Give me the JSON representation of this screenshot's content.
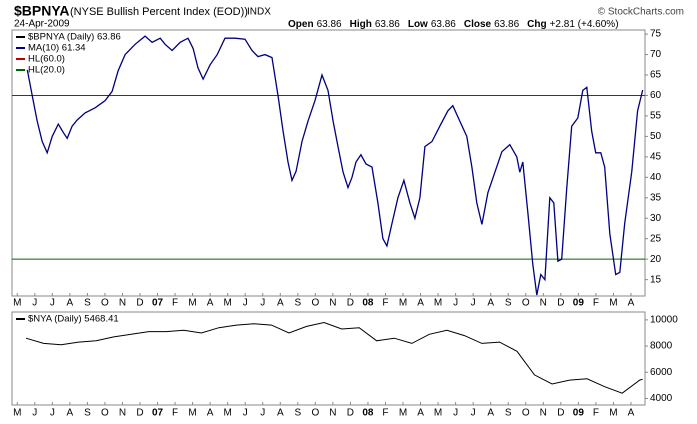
{
  "chart_data": [
    {
      "type": "line",
      "title": "$BPNYA",
      "subtitle": "(NYSE Bullish Percent Index (EOD))",
      "exchange": "INDX",
      "date": "24-Apr-2009",
      "quote": [
        {
          "label": "Open",
          "value": 63.86
        },
        {
          "label": "High",
          "value": 63.86
        },
        {
          "label": "Low",
          "value": 63.86
        },
        {
          "label": "Close",
          "value": 63.86
        },
        {
          "label": "Chg",
          "value": "+2.81 (+4.60%)"
        }
      ],
      "credit": "© StockCharts.com",
      "price_label": "$BPNYA (Daily) 63.86",
      "price_color": "#000000",
      "x": [
        0.57,
        0.91,
        1.14,
        1.42,
        1.71,
        1.99,
        2.34,
        2.62,
        2.85,
        3.13,
        3.42,
        3.87,
        4.44,
        5.01,
        5.41,
        5.75,
        6.15,
        6.72,
        7.29,
        7.69,
        8.15,
        8.43,
        8.83,
        9.29,
        9.74,
        10.03,
        10.31,
        10.6,
        11.0,
        11.4,
        11.85,
        12.42,
        12.99,
        13.39,
        13.73,
        14.13,
        14.53,
        14.87,
        15.16,
        15.44,
        15.67,
        15.9,
        16.24,
        16.58,
        16.98,
        17.38,
        17.72,
        18.01,
        18.29,
        18.58,
        18.86,
        19.09,
        19.32,
        19.6,
        19.89,
        20.23,
        20.57,
        20.85,
        21.08,
        21.37,
        21.71,
        22.05,
        22.39,
        22.68,
        22.96,
        23.25,
        23.65,
        24.1,
        24.56,
        24.84,
        25.24,
        25.64,
        25.93,
        26.21,
        26.5,
        26.84,
        27.24,
        27.64,
        28.09,
        28.49,
        28.66,
        28.83,
        29.12,
        29.4,
        29.63,
        29.86,
        30.09,
        30.37,
        30.6,
        30.83,
        31.05,
        31.34,
        31.62,
        31.97,
        32.25,
        32.48,
        32.76,
        32.99,
        33.28,
        33.5,
        33.79,
        34.13,
        34.36,
        34.64,
        35.04,
        35.38,
        35.67
      ],
      "series": [
        {
          "name": "MA(10) 61.34",
          "color": "#000080",
          "values": [
            66.25,
            58.75,
            53.75,
            48.75,
            46,
            50,
            53,
            51,
            49.5,
            52.5,
            54,
            55.75,
            57,
            58.75,
            61,
            66,
            70,
            72.5,
            74.5,
            73,
            74,
            72.5,
            71,
            73,
            74,
            71.5,
            66.75,
            64,
            67.5,
            70,
            74,
            74,
            73.75,
            71,
            69.5,
            70,
            69.25,
            60,
            51.25,
            43.75,
            39.25,
            41.5,
            48.75,
            53.75,
            58.75,
            65,
            61.25,
            53.75,
            47.5,
            41.25,
            37.5,
            40,
            43.75,
            45.5,
            43.25,
            42.5,
            33.75,
            25,
            23.25,
            28.75,
            35,
            39.25,
            33.75,
            30,
            35,
            47.5,
            48.75,
            52.5,
            56.25,
            57.5,
            53.75,
            50,
            42.5,
            33.75,
            28.5,
            36.25,
            41.25,
            46.25,
            48,
            45,
            41.25,
            43.75,
            31.25,
            18.75,
            11.25,
            16.25,
            15,
            35,
            33.75,
            19.5,
            20,
            37.5,
            52.5,
            54.5,
            61.25,
            62,
            51.25,
            46,
            46,
            42.5,
            26.25,
            16.25,
            16.75,
            28.75,
            41.25,
            56.25,
            61.34
          ]
        }
      ],
      "hlines": [
        {
          "name": "HL(60.0)",
          "value": 60,
          "color": "#c00000"
        },
        {
          "name": "HL(20.0)",
          "value": 20,
          "color": "#006400"
        }
      ],
      "xlim": [
        -0.3,
        35.8
      ],
      "xticks": [
        {
          "value": 0,
          "label": "M"
        },
        {
          "value": 1,
          "label": "J"
        },
        {
          "value": 2,
          "label": "J"
        },
        {
          "value": 3,
          "label": "A"
        },
        {
          "value": 4,
          "label": "S"
        },
        {
          "value": 5,
          "label": "O"
        },
        {
          "value": 6,
          "label": "N"
        },
        {
          "value": 7,
          "label": "D"
        },
        {
          "value": 8,
          "label": "07"
        },
        {
          "value": 9,
          "label": "F"
        },
        {
          "value": 10,
          "label": "M"
        },
        {
          "value": 11,
          "label": "A"
        },
        {
          "value": 12,
          "label": "M"
        },
        {
          "value": 13,
          "label": "J"
        },
        {
          "value": 14,
          "label": "J"
        },
        {
          "value": 15,
          "label": "A"
        },
        {
          "value": 16,
          "label": "S"
        },
        {
          "value": 17,
          "label": "O"
        },
        {
          "value": 18,
          "label": "N"
        },
        {
          "value": 19,
          "label": "D"
        },
        {
          "value": 20,
          "label": "08"
        },
        {
          "value": 21,
          "label": "F"
        },
        {
          "value": 22,
          "label": "M"
        },
        {
          "value": 23,
          "label": "A"
        },
        {
          "value": 24,
          "label": "M"
        },
        {
          "value": 25,
          "label": "J"
        },
        {
          "value": 26,
          "label": "J"
        },
        {
          "value": 27,
          "label": "A"
        },
        {
          "value": 28,
          "label": "S"
        },
        {
          "value": 29,
          "label": "O"
        },
        {
          "value": 30,
          "label": "N"
        },
        {
          "value": 31,
          "label": "D"
        },
        {
          "value": 32,
          "label": "09"
        },
        {
          "value": 33,
          "label": "F"
        },
        {
          "value": 34,
          "label": "M"
        },
        {
          "value": 35,
          "label": "A"
        }
      ],
      "ylim": [
        11,
        76
      ],
      "yticks": [
        15,
        20,
        25,
        30,
        35,
        40,
        45,
        50,
        55,
        60,
        65,
        70,
        75
      ]
    },
    {
      "type": "line",
      "x": [
        0.5,
        1.5,
        2.5,
        3.5,
        4.5,
        5.5,
        6.5,
        7.5,
        8.5,
        9.5,
        10.5,
        11.5,
        12.5,
        13.5,
        14.5,
        15.5,
        16.5,
        17.5,
        18.5,
        19.5,
        20.5,
        21.5,
        22.5,
        23.5,
        24.5,
        25.5,
        26.5,
        27.5,
        28.5,
        29.5,
        30.5,
        31.5,
        32.5,
        33.5,
        34.5,
        35.5,
        35.67
      ],
      "series": [
        {
          "name": "$NYA (Daily) 5468.41",
          "color": "#000000",
          "values": [
            8600,
            8200,
            8100,
            8300,
            8400,
            8700,
            8900,
            9100,
            9100,
            9200,
            9000,
            9400,
            9600,
            9700,
            9600,
            9000,
            9500,
            9800,
            9300,
            9400,
            8400,
            8600,
            8200,
            8900,
            9200,
            8800,
            8200,
            8300,
            7600,
            5800,
            5100,
            5400,
            5500,
            4900,
            4400,
            5400,
            5468.41
          ]
        }
      ],
      "xlim": [
        -0.3,
        35.8
      ],
      "xticks": [
        {
          "value": 0,
          "label": "M"
        },
        {
          "value": 1,
          "label": "J"
        },
        {
          "value": 2,
          "label": "J"
        },
        {
          "value": 3,
          "label": "A"
        },
        {
          "value": 4,
          "label": "S"
        },
        {
          "value": 5,
          "label": "O"
        },
        {
          "value": 6,
          "label": "N"
        },
        {
          "value": 7,
          "label": "D"
        },
        {
          "value": 8,
          "label": "07"
        },
        {
          "value": 9,
          "label": "F"
        },
        {
          "value": 10,
          "label": "M"
        },
        {
          "value": 11,
          "label": "A"
        },
        {
          "value": 12,
          "label": "M"
        },
        {
          "value": 13,
          "label": "J"
        },
        {
          "value": 14,
          "label": "J"
        },
        {
          "value": 15,
          "label": "A"
        },
        {
          "value": 16,
          "label": "S"
        },
        {
          "value": 17,
          "label": "O"
        },
        {
          "value": 18,
          "label": "N"
        },
        {
          "value": 19,
          "label": "D"
        },
        {
          "value": 20,
          "label": "08"
        },
        {
          "value": 21,
          "label": "F"
        },
        {
          "value": 22,
          "label": "M"
        },
        {
          "value": 23,
          "label": "A"
        },
        {
          "value": 24,
          "label": "M"
        },
        {
          "value": 25,
          "label": "J"
        },
        {
          "value": 26,
          "label": "J"
        },
        {
          "value": 27,
          "label": "A"
        },
        {
          "value": 28,
          "label": "S"
        },
        {
          "value": 29,
          "label": "O"
        },
        {
          "value": 30,
          "label": "N"
        },
        {
          "value": 31,
          "label": "D"
        },
        {
          "value": 32,
          "label": "09"
        },
        {
          "value": 33,
          "label": "F"
        },
        {
          "value": 34,
          "label": "M"
        },
        {
          "value": 35,
          "label": "A"
        }
      ],
      "ylim": [
        3500,
        10600
      ],
      "yticks": [
        4000,
        6000,
        8000,
        10000
      ]
    }
  ]
}
